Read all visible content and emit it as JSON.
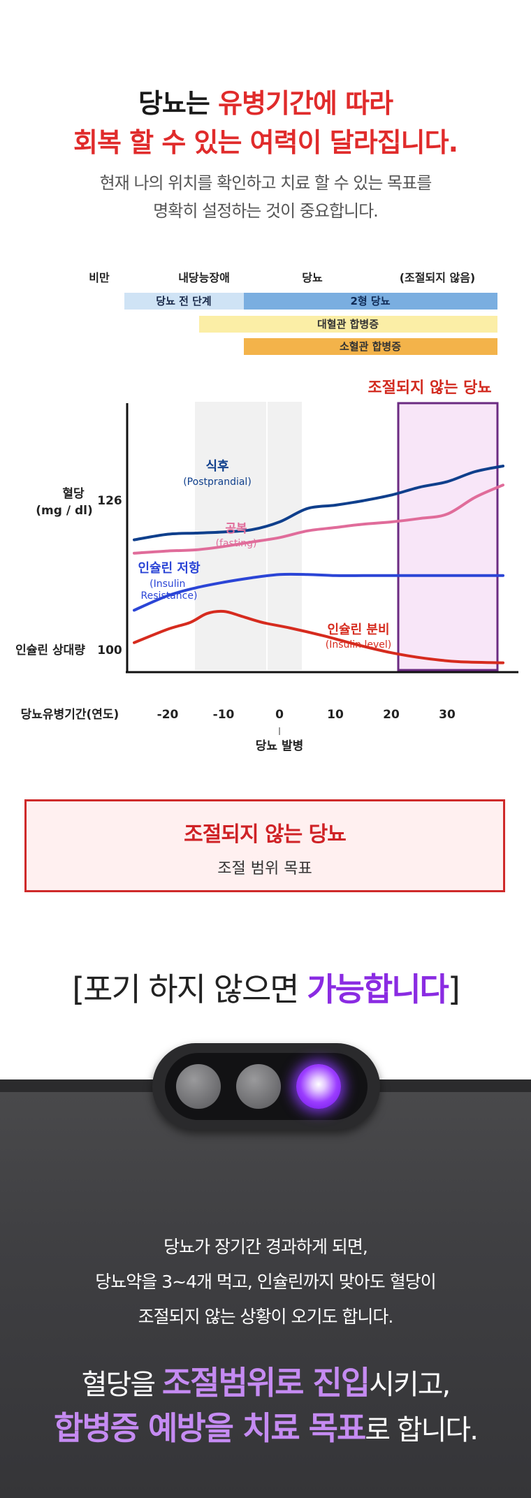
{
  "hero": {
    "title_line1_dark": "당뇨는 ",
    "title_line1_red": "유병기간에 따라",
    "title_line2_red": "회복 할 수 있는 여력이 달라집니다.",
    "subtitle_line1": "현재 나의 위치를 확인하고 치료 할 수 있는 목표를",
    "subtitle_line2": "명확히 설정하는 것이 중요합니다."
  },
  "stages": {
    "headers": [
      "비만",
      "내당능장애",
      "당뇨",
      "(조절되지 않음)"
    ],
    "bars": [
      {
        "label": "당뇨 전 단계",
        "color": "#cfe3f5"
      },
      {
        "label": "2형 당뇨",
        "color": "#7aaee0"
      },
      {
        "label": "대혈관 합병증",
        "color": "#fbeea6"
      },
      {
        "label": "소혈관 합병증",
        "color": "#f3b34a"
      }
    ]
  },
  "chart_data": {
    "type": "line",
    "title": "",
    "xlabel": "당뇨유병기간(연도)",
    "x_ticks": [
      -20,
      -10,
      0,
      10,
      20,
      30
    ],
    "x_marker_label": "당뇨 발병",
    "xlim": [
      -28,
      40
    ],
    "ylabel_top": "혈당 (mg / dl)",
    "ylabel_top_value": "126",
    "ylabel_bottom": "인슐린 상대량",
    "ylabel_bottom_value": "100",
    "highlight_label": "조절되지 않는 당뇨",
    "highlight_range": [
      21,
      40
    ],
    "series": [
      {
        "name": "식후",
        "name_en": "(Postprandial)",
        "color": "#0f3f8c",
        "x": [
          -26,
          -20,
          -15,
          -10,
          -5,
          0,
          5,
          10,
          15,
          20,
          25,
          30,
          35,
          40
        ],
        "y": [
          84,
          89,
          90,
          91,
          93,
          100,
          112,
          115,
          119,
          124,
          131,
          136,
          145,
          150
        ]
      },
      {
        "name": "공복",
        "name_en": "(fasting)",
        "color": "#e06c9a",
        "x": [
          -26,
          -20,
          -15,
          -10,
          -5,
          0,
          5,
          10,
          15,
          20,
          25,
          30,
          35,
          40
        ],
        "y": [
          72,
          74,
          75,
          78,
          82,
          86,
          92,
          95,
          98,
          100,
          103,
          107,
          122,
          133
        ]
      },
      {
        "name": "인슐린 저항",
        "name_en": "(Insulin Resistance)",
        "color": "#2b45d6",
        "x": [
          -26,
          -20,
          -15,
          -10,
          -5,
          0,
          5,
          10,
          15,
          20,
          25,
          30,
          35,
          40
        ],
        "y": [
          21,
          34,
          41,
          46,
          50,
          53,
          53,
          52,
          52,
          52,
          52,
          52,
          52,
          52
        ]
      },
      {
        "name": "인슐린 분비",
        "name_en": "(Insulin level)",
        "color": "#d62b1e",
        "x": [
          -26,
          -20,
          -16,
          -13,
          -10,
          -7,
          -3,
          2,
          8,
          14,
          20,
          26,
          32,
          40
        ],
        "y": [
          -8,
          4,
          10,
          18,
          20,
          16,
          10,
          5,
          -2,
          -10,
          -17,
          -22,
          -25,
          -26
        ]
      }
    ]
  },
  "goal_box": {
    "title": "조절되지 않는 당뇨",
    "subtitle": "조절 범위 목표"
  },
  "slogan": {
    "prefix": "[포기 하지 않으면 ",
    "highlight": "가능합니다",
    "suffix": "]"
  },
  "traffic_light": {
    "lit_color": "#8a2be2"
  },
  "dark_section": {
    "line1": "당뇨가 장기간 경과하게 되면,",
    "line2": "당뇨약을 3~4개 먹고, 인슐린까지 맞아도 혈당이",
    "line3": "조절되지 않는 상황이 오기도 합니다.",
    "final1_plain": "혈당을 ",
    "final1_hl": "조절범위로 진입",
    "final1_tail": "시키고,",
    "final2_hl": "합병증 예방을 치료 목표",
    "final2_tail": "로 합니다."
  }
}
